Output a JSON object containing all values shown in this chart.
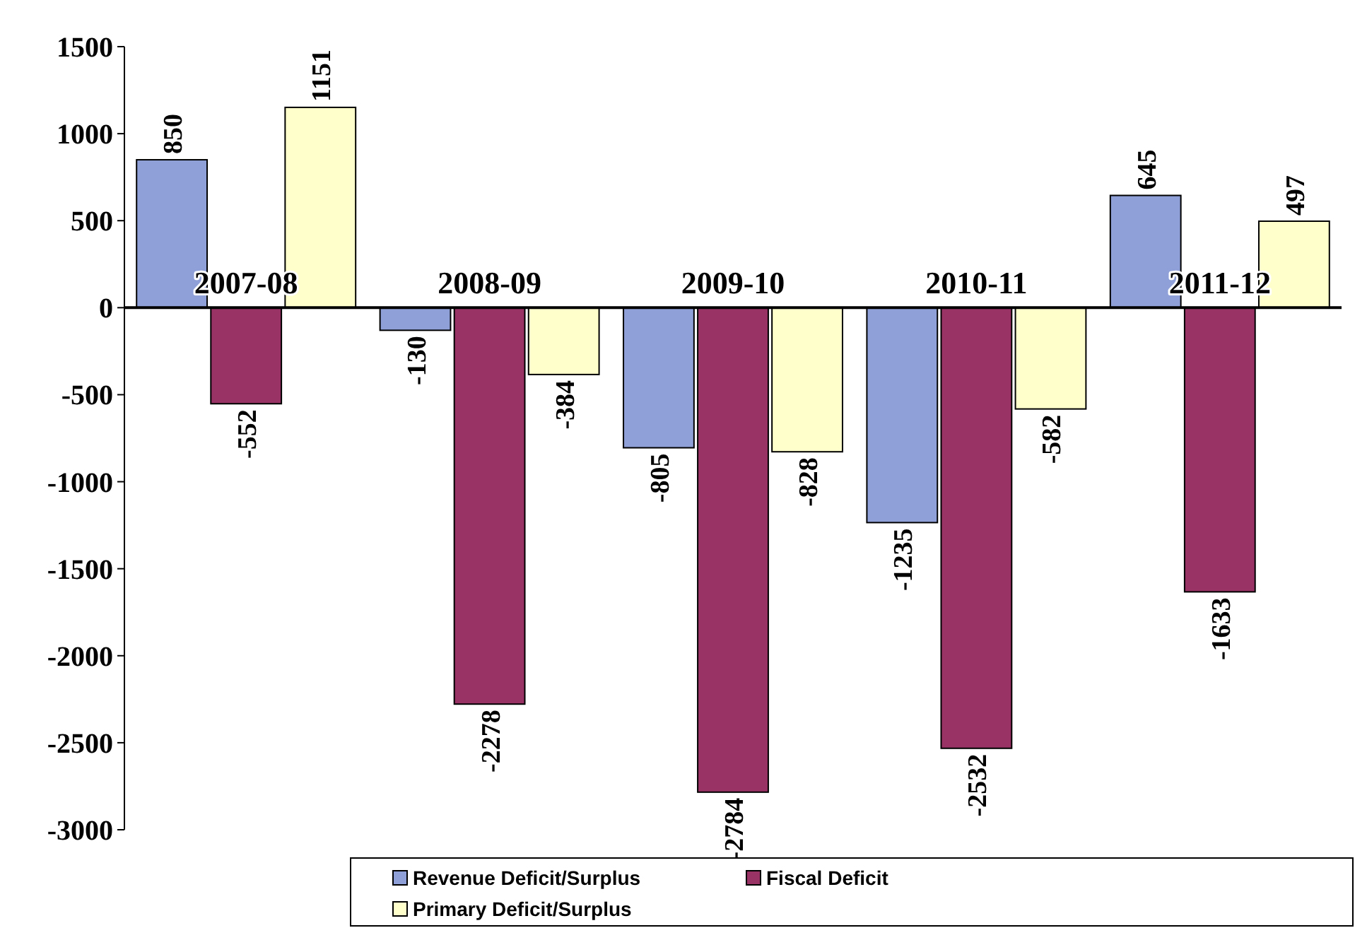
{
  "chart_data": {
    "type": "bar",
    "categories": [
      "2007-08",
      "2008-09",
      "2009-10",
      "2010-11",
      "2011-12"
    ],
    "series": [
      {
        "name": "Revenue Deficit/Surplus",
        "color": "#8fa0d8",
        "values": [
          850,
          -130,
          -805,
          -1235,
          645
        ]
      },
      {
        "name": "Fiscal Deficit",
        "color": "#993366",
        "values": [
          -552,
          -2278,
          -2784,
          -2532,
          -1633
        ]
      },
      {
        "name": "Primary Deficit/Surplus",
        "color": "#ffffcc",
        "values": [
          1151,
          -384,
          -828,
          -582,
          497
        ]
      }
    ],
    "ylim": [
      -3000,
      1500
    ],
    "yticks": [
      -3000,
      -2500,
      -2000,
      -1500,
      -1000,
      -500,
      0,
      500,
      1000,
      1500
    ],
    "data_labels": true,
    "grid": false,
    "legend": "bottom"
  }
}
